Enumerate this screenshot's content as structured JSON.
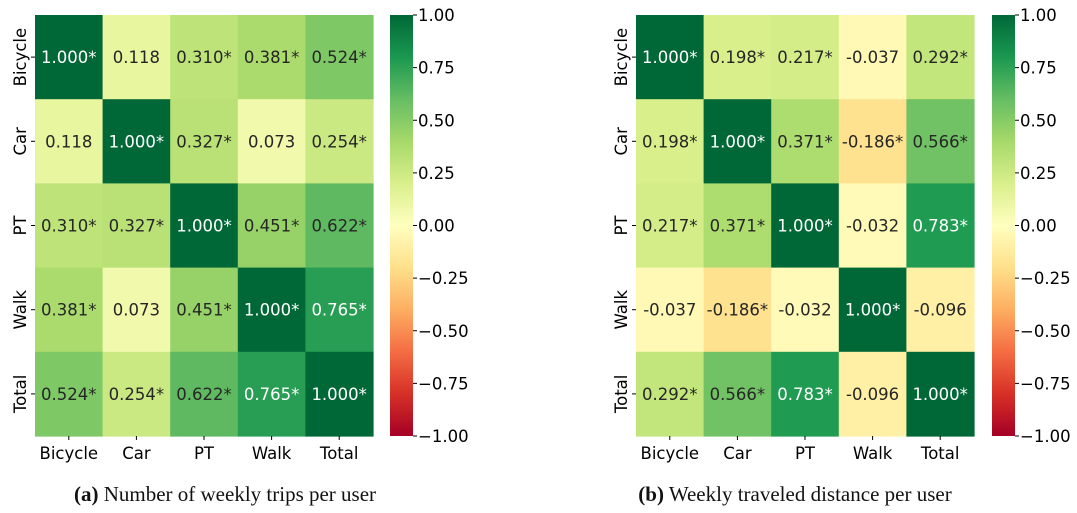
{
  "chart_data": [
    {
      "type": "heatmap",
      "labels": [
        "Bicycle",
        "Car",
        "PT",
        "Walk",
        "Total"
      ],
      "values": [
        [
          1.0,
          0.118,
          0.31,
          0.381,
          0.524
        ],
        [
          0.118,
          1.0,
          0.327,
          0.073,
          0.254
        ],
        [
          0.31,
          0.327,
          1.0,
          0.451,
          0.622
        ],
        [
          0.381,
          0.073,
          0.451,
          1.0,
          0.765
        ],
        [
          0.524,
          0.254,
          0.622,
          0.765,
          1.0
        ]
      ],
      "annotations": [
        [
          "1.000*",
          "0.118",
          "0.310*",
          "0.381*",
          "0.524*"
        ],
        [
          "0.118",
          "1.000*",
          "0.327*",
          "0.073",
          "0.254*"
        ],
        [
          "0.310*",
          "0.327*",
          "1.000*",
          "0.451*",
          "0.622*"
        ],
        [
          "0.381*",
          "0.073",
          "0.451*",
          "1.000*",
          "0.765*"
        ],
        [
          "0.524*",
          "0.254*",
          "0.622*",
          "0.765*",
          "1.000*"
        ]
      ],
      "colormap": "RdYlGn",
      "vmin": -1,
      "vmax": 1,
      "colorbar_ticks": [
        "1.00",
        "0.75",
        "0.50",
        "0.25",
        "0.00",
        "−0.25",
        "−0.50",
        "−0.75",
        "−1.00"
      ],
      "caption_tag": "(a)",
      "caption_text": "Number of weekly trips per user"
    },
    {
      "type": "heatmap",
      "labels": [
        "Bicycle",
        "Car",
        "PT",
        "Walk",
        "Total"
      ],
      "values": [
        [
          1.0,
          0.198,
          0.217,
          -0.037,
          0.292
        ],
        [
          0.198,
          1.0,
          0.371,
          -0.186,
          0.566
        ],
        [
          0.217,
          0.371,
          1.0,
          -0.032,
          0.783
        ],
        [
          -0.037,
          -0.186,
          -0.032,
          1.0,
          -0.096
        ],
        [
          0.292,
          0.566,
          0.783,
          -0.096,
          1.0
        ]
      ],
      "annotations": [
        [
          "1.000*",
          "0.198*",
          "0.217*",
          "-0.037",
          "0.292*"
        ],
        [
          "0.198*",
          "1.000*",
          "0.371*",
          "-0.186*",
          "0.566*"
        ],
        [
          "0.217*",
          "0.371*",
          "1.000*",
          "-0.032",
          "0.783*"
        ],
        [
          "-0.037",
          "-0.186*",
          "-0.032",
          "1.000*",
          "-0.096"
        ],
        [
          "0.292*",
          "0.566*",
          "0.783*",
          "-0.096",
          "1.000*"
        ]
      ],
      "colormap": "RdYlGn",
      "vmin": -1,
      "vmax": 1,
      "colorbar_ticks": [
        "1.00",
        "0.75",
        "0.50",
        "0.25",
        "0.00",
        "−0.25",
        "−0.50",
        "−0.75",
        "−1.00"
      ],
      "caption_tag": "(b)",
      "caption_text": "Weekly traveled distance per user"
    }
  ]
}
